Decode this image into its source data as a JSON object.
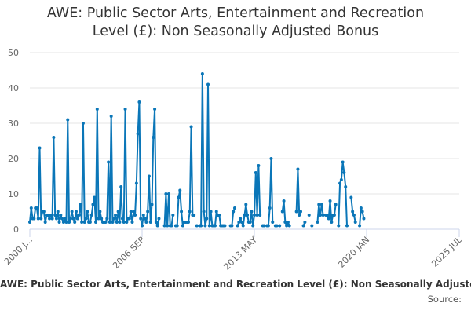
{
  "chart_data": {
    "type": "line",
    "title_lines": [
      "AWE: Public Sector Arts, Entertainment and Recreation",
      "Level (£): Non Seasonally Adjusted Bonus"
    ],
    "xlabel": "",
    "ylabel": "",
    "ylim": [
      0,
      50
    ],
    "yticks": [
      "0",
      "10",
      "20",
      "30",
      "40",
      "50"
    ],
    "xticks": [
      {
        "label": "2000 J...",
        "x": 0
      },
      {
        "label": "2006 SEP",
        "x": 80
      },
      {
        "label": "2013 MAY",
        "x": 160
      },
      {
        "label": "2020 JAN",
        "x": 240
      },
      {
        "label": "2025 JUL",
        "x": 306
      }
    ],
    "grid": true,
    "legend_text": "AWE: Public Sector Arts, Entertainment and Recreation Level (£): Non Seasonally Adjusted Bonus",
    "source_label": "Source:",
    "color": "#0a76b8",
    "series": [
      {
        "points": [
          [
            0,
            2
          ],
          [
            1,
            6
          ],
          [
            2,
            3
          ],
          [
            3,
            3
          ],
          [
            4,
            6
          ],
          [
            5,
            6
          ],
          [
            6,
            3
          ],
          [
            7,
            23
          ],
          [
            8,
            3
          ],
          [
            9,
            5
          ],
          [
            10,
            5
          ],
          [
            11,
            2
          ],
          [
            12,
            4
          ],
          [
            13,
            4
          ],
          [
            14,
            3
          ],
          [
            15,
            4
          ],
          [
            16,
            3
          ],
          [
            17,
            26
          ],
          [
            18,
            4
          ],
          [
            19,
            3
          ],
          [
            20,
            5
          ],
          [
            21,
            2
          ],
          [
            22,
            4
          ],
          [
            23,
            3
          ],
          [
            24,
            2
          ],
          [
            25,
            3
          ],
          [
            26,
            2
          ],
          [
            27,
            31
          ],
          [
            28,
            2
          ],
          [
            29,
            3
          ],
          [
            30,
            5
          ],
          [
            31,
            3
          ],
          [
            32,
            2
          ],
          [
            33,
            5
          ],
          [
            34,
            3
          ],
          [
            35,
            4
          ],
          [
            36,
            7
          ],
          [
            37,
            2
          ],
          [
            38,
            30
          ],
          [
            39,
            2
          ],
          [
            40,
            3
          ],
          [
            41,
            5
          ],
          [
            42,
            2
          ],
          [
            43,
            2
          ],
          [
            44,
            4
          ],
          [
            45,
            7
          ],
          [
            46,
            9
          ],
          [
            47,
            2
          ],
          [
            48,
            34
          ],
          [
            49,
            3
          ],
          [
            50,
            5
          ],
          [
            51,
            3
          ],
          [
            52,
            2
          ],
          [
            53,
            2
          ],
          [
            54,
            2
          ],
          [
            55,
            3
          ],
          [
            56,
            19
          ],
          [
            57,
            2
          ],
          [
            58,
            32
          ],
          [
            59,
            2
          ],
          [
            60,
            3
          ],
          [
            61,
            4
          ],
          [
            62,
            2
          ],
          [
            63,
            5
          ],
          [
            64,
            2
          ],
          [
            65,
            12
          ],
          [
            66,
            3
          ],
          [
            67,
            2
          ],
          [
            68,
            34
          ],
          [
            69,
            2
          ],
          [
            70,
            3
          ],
          [
            71,
            3
          ],
          [
            72,
            5
          ],
          [
            73,
            2
          ],
          [
            74,
            5
          ],
          [
            75,
            4
          ],
          [
            76,
            13
          ],
          [
            77,
            27
          ],
          [
            78,
            36
          ],
          [
            79,
            3
          ],
          [
            80,
            1
          ],
          [
            81,
            4
          ],
          [
            82,
            3
          ],
          [
            83,
            2
          ],
          [
            84,
            5
          ],
          [
            85,
            15
          ],
          [
            86,
            2
          ],
          [
            87,
            7
          ],
          [
            88,
            26
          ],
          [
            89,
            34
          ],
          [
            90,
            2
          ],
          [
            91,
            1
          ],
          [
            92,
            3
          ],
          [
            96,
            1
          ],
          [
            97,
            10
          ],
          [
            98,
            1
          ],
          [
            99,
            10
          ],
          [
            100,
            1
          ],
          [
            101,
            1
          ],
          [
            102,
            4
          ],
          [
            104,
            1
          ],
          [
            105,
            1
          ],
          [
            106,
            9
          ],
          [
            107,
            11
          ],
          [
            108,
            5
          ],
          [
            109,
            1
          ],
          [
            110,
            2
          ],
          [
            111,
            2
          ],
          [
            112,
            2
          ],
          [
            113,
            2
          ],
          [
            114,
            5
          ],
          [
            115,
            29
          ],
          [
            116,
            4
          ],
          [
            117,
            4
          ],
          [
            119,
            1
          ],
          [
            121,
            1
          ],
          [
            122,
            1
          ],
          [
            123,
            44
          ],
          [
            124,
            5
          ],
          [
            125,
            1
          ],
          [
            126,
            3
          ],
          [
            127,
            41
          ],
          [
            128,
            1
          ],
          [
            129,
            5
          ],
          [
            130,
            1
          ],
          [
            131,
            1
          ],
          [
            132,
            1
          ],
          [
            133,
            5
          ],
          [
            134,
            4
          ],
          [
            135,
            4
          ],
          [
            136,
            1
          ],
          [
            137,
            1
          ],
          [
            138,
            1
          ],
          [
            139,
            1
          ],
          [
            143,
            1
          ],
          [
            144,
            1
          ],
          [
            145,
            5
          ],
          [
            146,
            6
          ],
          [
            148,
            1
          ],
          [
            149,
            2
          ],
          [
            150,
            3
          ],
          [
            151,
            2
          ],
          [
            152,
            1
          ],
          [
            153,
            4
          ],
          [
            154,
            7
          ],
          [
            155,
            4
          ],
          [
            156,
            2
          ],
          [
            157,
            2
          ],
          [
            158,
            5
          ],
          [
            159,
            1
          ],
          [
            160,
            4
          ],
          [
            161,
            16
          ],
          [
            162,
            4
          ],
          [
            163,
            18
          ],
          [
            164,
            4
          ],
          [
            166,
            1
          ],
          [
            167,
            1
          ],
          [
            169,
            1
          ],
          [
            170,
            1
          ],
          [
            171,
            6
          ],
          [
            172,
            20
          ],
          [
            173,
            2
          ],
          [
            175,
            1
          ],
          [
            176,
            1
          ],
          [
            178,
            1
          ],
          [
            180,
            5
          ],
          [
            181,
            8
          ],
          [
            182,
            2
          ],
          [
            183,
            1
          ],
          [
            184,
            2
          ],
          [
            185,
            1
          ],
          [
            190,
            5
          ],
          [
            191,
            17
          ],
          [
            192,
            4
          ],
          [
            193,
            5
          ],
          [
            195,
            1
          ],
          [
            196,
            2
          ],
          [
            199,
            4
          ],
          [
            201,
            1
          ],
          [
            205,
            2
          ],
          [
            206,
            7
          ],
          [
            207,
            4
          ],
          [
            208,
            7
          ],
          [
            209,
            4
          ],
          [
            211,
            4
          ],
          [
            212,
            4
          ],
          [
            213,
            3
          ],
          [
            214,
            8
          ],
          [
            215,
            2
          ],
          [
            216,
            4
          ],
          [
            217,
            4
          ],
          [
            218,
            7
          ],
          [
            220,
            1
          ],
          [
            221,
            13
          ],
          [
            222,
            14
          ],
          [
            223,
            19
          ],
          [
            224,
            16
          ],
          [
            225,
            12
          ],
          [
            226,
            1
          ],
          [
            229,
            9
          ],
          [
            230,
            5
          ],
          [
            231,
            4
          ],
          [
            232,
            2
          ],
          [
            235,
            1
          ],
          [
            236,
            6
          ],
          [
            237,
            5
          ],
          [
            238,
            3
          ]
        ]
      }
    ]
  }
}
